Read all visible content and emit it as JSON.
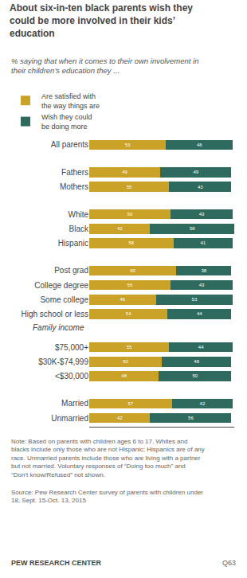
{
  "chart_data": {
    "type": "bar",
    "orientation": "horizontal",
    "stacked": true,
    "title": "About six-in-ten black parents wish they\ncould be more involved in their kids’\neducation",
    "subtitle": "% saying that when it comes to their own involvement in\ntheir children’s education they ...",
    "categories": [
      "All parents",
      "Fathers",
      "Mothers",
      "White",
      "Black",
      "Hispanic",
      "Post grad",
      "College degree",
      "Some college",
      "High school or less",
      "$75,000+",
      "$30K-$74,999",
      "<$30,000",
      "Married",
      "Unmarried"
    ],
    "series": [
      {
        "name": "Are satisfied with\nthe way things are",
        "color": "#C9A227",
        "values": [
          53,
          49,
          55,
          56,
          42,
          58,
          60,
          56,
          46,
          54,
          55,
          50,
          48,
          57,
          42
        ]
      },
      {
        "name": "Wish they could\nbe doing more",
        "color": "#2E6B5E",
        "values": [
          46,
          49,
          43,
          43,
          58,
          41,
          38,
          43,
          53,
          44,
          44,
          48,
          50,
          42,
          56
        ]
      }
    ],
    "xlim": [
      0,
      100
    ],
    "data_labels": true,
    "tick_labels": "y",
    "grid": false,
    "legend": "top",
    "annotations": [
      "Family income",
      "Note: Based on parents with children ages 6 to 17. Whites and\nblacks include only those who are not Hispanic; Hispanics are of any\nrace. Unmarried parents include those who are living with a partner\nbut not married. Voluntary responses of “Doing too much” and\n“Don’t know/Refused” not shown.",
      "Source: Pew Research Center survey of parents with children under\n18, Sept. 15-Oct. 13, 2015",
      "PEW RESEARCH CENTER",
      "Q63"
    ]
  }
}
